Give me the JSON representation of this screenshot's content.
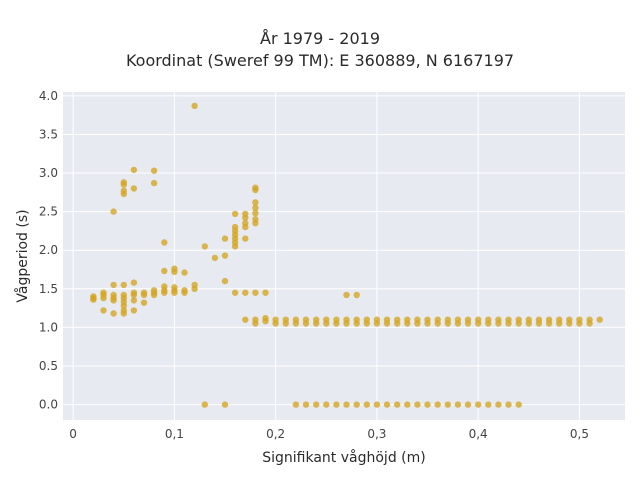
{
  "chart_data": {
    "type": "scatter",
    "title_lines": [
      "År 1979 - 2019",
      "Koordinat (Sweref 99 TM): E 360889, N 6167197"
    ],
    "xlabel": "Signifikant våghöjd (m)",
    "ylabel": "Vågperiod (s)",
    "xlim": [
      -0.01,
      0.545
    ],
    "ylim": [
      -0.2,
      4.05
    ],
    "xticks": [
      0,
      0.1,
      0.2,
      0.3,
      0.4,
      0.5
    ],
    "xtick_labels": [
      "0",
      "0,1",
      "0,2",
      "0,3",
      "0,4",
      "0,5"
    ],
    "yticks": [
      0,
      0.5,
      1.0,
      1.5,
      2.0,
      2.5,
      3.0,
      3.5,
      4.0
    ],
    "ytick_labels": [
      "0.0",
      "0.5",
      "1.0",
      "1.5",
      "2.0",
      "2.5",
      "3.0",
      "3.5",
      "4.0"
    ],
    "grid": true,
    "legend": "none",
    "colors": {
      "marker": "#d4a420",
      "plot_bg": "#e8eaf2",
      "grid": "#ffffff"
    },
    "points": [
      [
        0.02,
        1.36
      ],
      [
        0.02,
        1.38
      ],
      [
        0.02,
        1.4
      ],
      [
        0.03,
        1.22
      ],
      [
        0.03,
        1.38
      ],
      [
        0.03,
        1.42
      ],
      [
        0.03,
        1.45
      ],
      [
        0.04,
        1.18
      ],
      [
        0.04,
        1.35
      ],
      [
        0.04,
        1.38
      ],
      [
        0.04,
        1.42
      ],
      [
        0.04,
        1.55
      ],
      [
        0.04,
        2.5
      ],
      [
        0.05,
        1.18
      ],
      [
        0.05,
        1.22
      ],
      [
        0.05,
        1.28
      ],
      [
        0.05,
        1.33
      ],
      [
        0.05,
        1.38
      ],
      [
        0.05,
        1.42
      ],
      [
        0.05,
        1.55
      ],
      [
        0.05,
        2.73
      ],
      [
        0.05,
        2.77
      ],
      [
        0.05,
        2.85
      ],
      [
        0.05,
        2.88
      ],
      [
        0.06,
        1.22
      ],
      [
        0.06,
        1.35
      ],
      [
        0.06,
        1.42
      ],
      [
        0.06,
        1.45
      ],
      [
        0.06,
        1.58
      ],
      [
        0.06,
        2.8
      ],
      [
        0.06,
        3.04
      ],
      [
        0.07,
        1.32
      ],
      [
        0.07,
        1.42
      ],
      [
        0.07,
        1.45
      ],
      [
        0.08,
        1.42
      ],
      [
        0.08,
        1.45
      ],
      [
        0.08,
        1.48
      ],
      [
        0.08,
        2.87
      ],
      [
        0.08,
        3.03
      ],
      [
        0.09,
        1.45
      ],
      [
        0.09,
        1.48
      ],
      [
        0.09,
        1.53
      ],
      [
        0.09,
        1.73
      ],
      [
        0.09,
        2.1
      ],
      [
        0.1,
        1.45
      ],
      [
        0.1,
        1.48
      ],
      [
        0.1,
        1.52
      ],
      [
        0.1,
        1.72
      ],
      [
        0.1,
        1.76
      ],
      [
        0.11,
        1.45
      ],
      [
        0.11,
        1.48
      ],
      [
        0.11,
        1.71
      ],
      [
        0.12,
        1.5
      ],
      [
        0.12,
        1.55
      ],
      [
        0.12,
        3.87
      ],
      [
        0.13,
        0.0
      ],
      [
        0.13,
        2.05
      ],
      [
        0.14,
        1.9
      ],
      [
        0.15,
        0.0
      ],
      [
        0.15,
        1.6
      ],
      [
        0.15,
        1.93
      ],
      [
        0.15,
        2.15
      ],
      [
        0.16,
        1.45
      ],
      [
        0.16,
        2.05
      ],
      [
        0.16,
        2.1
      ],
      [
        0.16,
        2.15
      ],
      [
        0.16,
        2.2
      ],
      [
        0.16,
        2.25
      ],
      [
        0.16,
        2.3
      ],
      [
        0.16,
        2.47
      ],
      [
        0.17,
        1.1
      ],
      [
        0.17,
        1.45
      ],
      [
        0.17,
        2.15
      ],
      [
        0.17,
        2.3
      ],
      [
        0.17,
        2.35
      ],
      [
        0.17,
        2.42
      ],
      [
        0.17,
        2.47
      ],
      [
        0.18,
        1.05
      ],
      [
        0.18,
        1.1
      ],
      [
        0.18,
        1.45
      ],
      [
        0.18,
        2.35
      ],
      [
        0.18,
        2.4
      ],
      [
        0.18,
        2.48
      ],
      [
        0.18,
        2.55
      ],
      [
        0.18,
        2.62
      ],
      [
        0.18,
        2.78
      ],
      [
        0.18,
        2.81
      ],
      [
        0.19,
        1.08
      ],
      [
        0.19,
        1.12
      ],
      [
        0.19,
        1.45
      ],
      [
        0.2,
        1.05
      ],
      [
        0.2,
        1.1
      ],
      [
        0.21,
        1.05
      ],
      [
        0.21,
        1.1
      ],
      [
        0.22,
        0.0
      ],
      [
        0.22,
        1.05
      ],
      [
        0.22,
        1.1
      ],
      [
        0.27,
        1.42
      ],
      [
        0.28,
        1.42
      ]
    ],
    "dense_rows": [
      {
        "y": 0.0,
        "x_start": 0.23,
        "x_end": 0.44,
        "step": 0.01
      },
      {
        "y": 1.05,
        "x_start": 0.23,
        "x_end": 0.51,
        "step": 0.01
      },
      {
        "y": 1.1,
        "x_start": 0.23,
        "x_end": 0.52,
        "step": 0.01
      }
    ]
  }
}
